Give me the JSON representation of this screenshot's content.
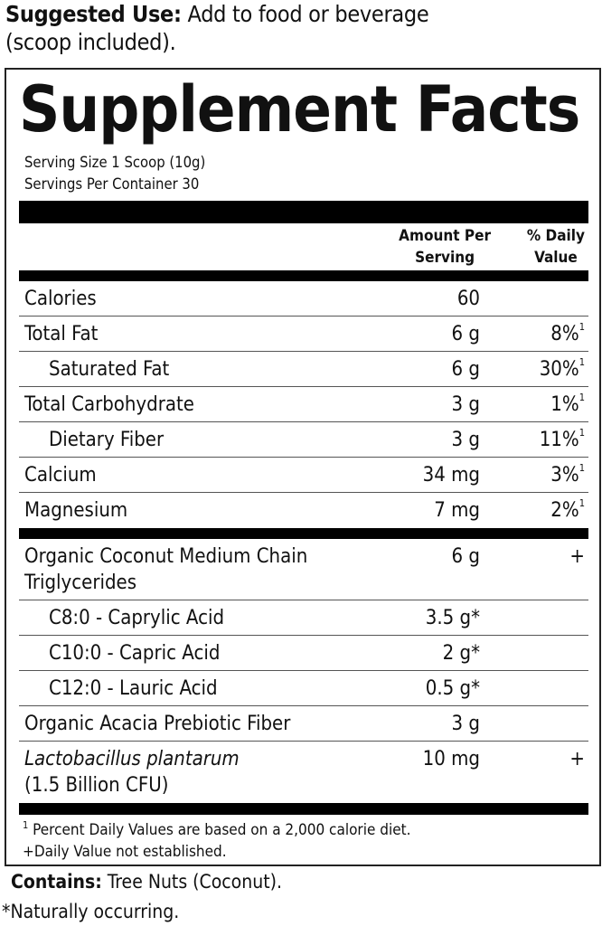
{
  "suggested_use": {
    "label": "Suggested Use:",
    "text": " Add to food or beverage",
    "text2": "(scoop included)."
  },
  "facts": {
    "title": "Supplement Facts",
    "serving_size": "Serving Size 1 Scoop (10g)",
    "servings_per_container": "Servings Per Container 30",
    "header": {
      "amount_line1": "Amount Per",
      "amount_line2": "Serving",
      "dv_line1": "% Daily",
      "dv_line2": "Value"
    },
    "rows": [
      {
        "name": "Calories",
        "amount": "60",
        "dv": ""
      },
      {
        "name": "Total Fat",
        "amount": "6 g",
        "dv": "8%",
        "sup": "1"
      },
      {
        "name": "Saturated Fat",
        "amount": "6 g",
        "dv": "30%",
        "sup": "1",
        "indent": true
      },
      {
        "name": "Total Carbohydrate",
        "amount": "3 g",
        "dv": "1%",
        "sup": "1"
      },
      {
        "name": "Dietary Fiber",
        "amount": "3 g",
        "dv": "11%",
        "sup": "1",
        "indent": true
      },
      {
        "name": "Calcium",
        "amount": "34 mg",
        "dv": "3%",
        "sup": "1"
      },
      {
        "name": "Magnesium",
        "amount": "7 mg",
        "dv": "2%",
        "sup": "1"
      }
    ],
    "rows2": [
      {
        "name": "Organic Coconut Medium Chain",
        "name2": "Triglycerides",
        "amount": "6 g",
        "dv": "+"
      },
      {
        "name": "C8:0 - Caprylic Acid",
        "amount": "3.5 g*",
        "dv": "",
        "indent": true
      },
      {
        "name": "C10:0 - Capric Acid",
        "amount": "2 g*",
        "dv": "",
        "indent": true
      },
      {
        "name": "C12:0 - Lauric Acid",
        "amount": "0.5 g*",
        "dv": "",
        "indent": true
      },
      {
        "name": "Organic Acacia Prebiotic Fiber",
        "amount": "3 g",
        "dv": ""
      },
      {
        "name": "Lactobacillus plantarum",
        "name2": "(1.5 Billion CFU)",
        "amount": "10 mg",
        "dv": "+",
        "italic": true
      }
    ],
    "footnote1_sup": "1",
    "footnote1": " Percent Daily Values are based on a 2,000 calorie diet.",
    "footnote2": "+Daily Value not established."
  },
  "contains": {
    "label": "Contains:",
    "text": " Tree Nuts (Coconut)."
  },
  "naturally": "*Naturally occurring."
}
